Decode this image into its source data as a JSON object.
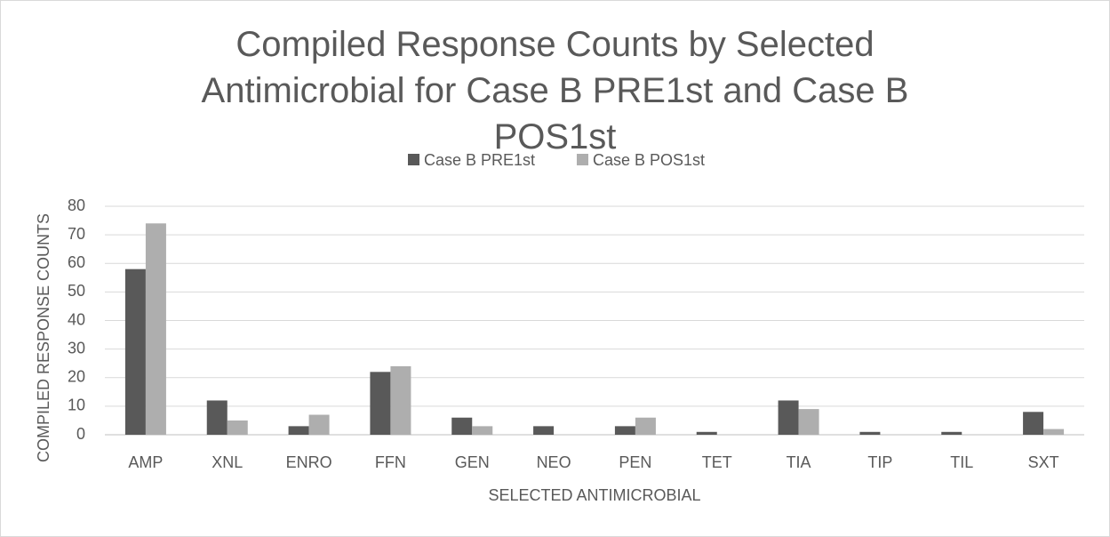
{
  "chart_data": {
    "type": "bar",
    "title": "Compiled Response Counts by Selected Antimicrobial for Case B PRE1st and Case B POS1st",
    "x_label": "SELECTED ANTIMICROBIAL",
    "y_label": "COMPILED RESPONSE COUNTS",
    "categories": [
      "AMP",
      "XNL",
      "ENRO",
      "FFN",
      "GEN",
      "NEO",
      "PEN",
      "TET",
      "TIA",
      "TIP",
      "TIL",
      "SXT"
    ],
    "series": [
      {
        "name": "Case B PRE1st",
        "color": "#595959",
        "values": [
          58,
          12,
          3,
          22,
          6,
          3,
          3,
          1,
          12,
          1,
          1,
          8
        ]
      },
      {
        "name": "Case B POS1st",
        "color": "#aeaeae",
        "values": [
          74,
          5,
          7,
          24,
          3,
          0,
          6,
          0,
          9,
          0,
          0,
          2
        ]
      }
    ],
    "ylim": [
      0,
      80
    ],
    "yticks": [
      0,
      10,
      20,
      30,
      40,
      50,
      60,
      70,
      80
    ],
    "grid": true,
    "legend": "top"
  }
}
